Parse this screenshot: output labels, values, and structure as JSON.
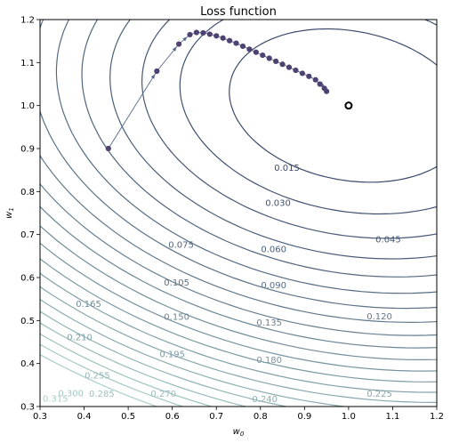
{
  "chart_data": {
    "type": "contour",
    "title": "Loss function",
    "xlabel": "w",
    "xlabel_sub": "0",
    "ylabel": "w",
    "ylabel_sub": "1",
    "xlim": [
      0.3,
      1.2
    ],
    "ylim": [
      0.3,
      1.2
    ],
    "x_ticks": [
      "0.3",
      "0.4",
      "0.5",
      "0.6",
      "0.7",
      "0.8",
      "0.9",
      "1.0",
      "1.1",
      "1.2"
    ],
    "y_ticks": [
      "0.3",
      "0.4",
      "0.5",
      "0.6",
      "0.7",
      "0.8",
      "0.9",
      "1.0",
      "1.1",
      "1.2"
    ],
    "minimum": {
      "w0": 1.0,
      "w1": 1.0
    },
    "contour_levels": [
      0.015,
      0.03,
      0.045,
      0.06,
      0.075,
      0.09,
      0.105,
      0.12,
      0.135,
      0.15,
      0.165,
      0.18,
      0.195,
      0.21,
      0.225,
      0.24,
      0.255,
      0.27,
      0.285,
      0.3,
      0.315
    ],
    "contour_labels": [
      {
        "text": "0.015",
        "w0": 0.86,
        "w1": 0.855
      },
      {
        "text": "0.030",
        "w0": 0.84,
        "w1": 0.773
      },
      {
        "text": "0.045",
        "w0": 1.09,
        "w1": 0.688
      },
      {
        "text": "0.060",
        "w0": 0.83,
        "w1": 0.665
      },
      {
        "text": "0.075",
        "w0": 0.62,
        "w1": 0.676
      },
      {
        "text": "0.090",
        "w0": 0.83,
        "w1": 0.581
      },
      {
        "text": "0.105",
        "w0": 0.61,
        "w1": 0.588
      },
      {
        "text": "0.120",
        "w0": 1.07,
        "w1": 0.509
      },
      {
        "text": "0.135",
        "w0": 0.82,
        "w1": 0.494
      },
      {
        "text": "0.150",
        "w0": 0.61,
        "w1": 0.508
      },
      {
        "text": "0.165",
        "w0": 0.41,
        "w1": 0.538
      },
      {
        "text": "0.180",
        "w0": 0.82,
        "w1": 0.408
      },
      {
        "text": "0.195",
        "w0": 0.6,
        "w1": 0.421
      },
      {
        "text": "0.210",
        "w0": 0.39,
        "w1": 0.46
      },
      {
        "text": "0.225",
        "w0": 1.07,
        "w1": 0.329
      },
      {
        "text": "0.240",
        "w0": 0.81,
        "w1": 0.317
      },
      {
        "text": "0.255",
        "w0": 0.43,
        "w1": 0.371
      },
      {
        "text": "0.270",
        "w0": 0.58,
        "w1": 0.329
      },
      {
        "text": "0.285",
        "w0": 0.44,
        "w1": 0.329
      },
      {
        "text": "0.300",
        "w0": 0.37,
        "w1": 0.33
      },
      {
        "text": "0.315",
        "w0": 0.335,
        "w1": 0.318
      }
    ],
    "gradient_descent_path": [
      {
        "w0": 0.455,
        "w1": 0.9
      },
      {
        "w0": 0.565,
        "w1": 1.08
      },
      {
        "w0": 0.615,
        "w1": 1.143
      },
      {
        "w0": 0.64,
        "w1": 1.165
      },
      {
        "w0": 0.655,
        "w1": 1.17
      },
      {
        "w0": 0.67,
        "w1": 1.169
      },
      {
        "w0": 0.685,
        "w1": 1.166
      },
      {
        "w0": 0.7,
        "w1": 1.162
      },
      {
        "w0": 0.715,
        "w1": 1.157
      },
      {
        "w0": 0.73,
        "w1": 1.151
      },
      {
        "w0": 0.745,
        "w1": 1.145
      },
      {
        "w0": 0.76,
        "w1": 1.138
      },
      {
        "w0": 0.775,
        "w1": 1.131
      },
      {
        "w0": 0.79,
        "w1": 1.124
      },
      {
        "w0": 0.805,
        "w1": 1.117
      },
      {
        "w0": 0.82,
        "w1": 1.11
      },
      {
        "w0": 0.835,
        "w1": 1.103
      },
      {
        "w0": 0.85,
        "w1": 1.096
      },
      {
        "w0": 0.865,
        "w1": 1.089
      },
      {
        "w0": 0.88,
        "w1": 1.082
      },
      {
        "w0": 0.895,
        "w1": 1.075
      },
      {
        "w0": 0.91,
        "w1": 1.068
      },
      {
        "w0": 0.925,
        "w1": 1.06
      },
      {
        "w0": 0.935,
        "w1": 1.05
      },
      {
        "w0": 0.945,
        "w1": 1.04
      },
      {
        "w0": 0.95,
        "w1": 1.033
      }
    ],
    "colors": {
      "contour_low": "#3b4a6b",
      "contour_high": "#a8cfc9",
      "path": "#4e4272",
      "arrow": "#5a6a8a",
      "minimum_marker": "#000000"
    }
  }
}
